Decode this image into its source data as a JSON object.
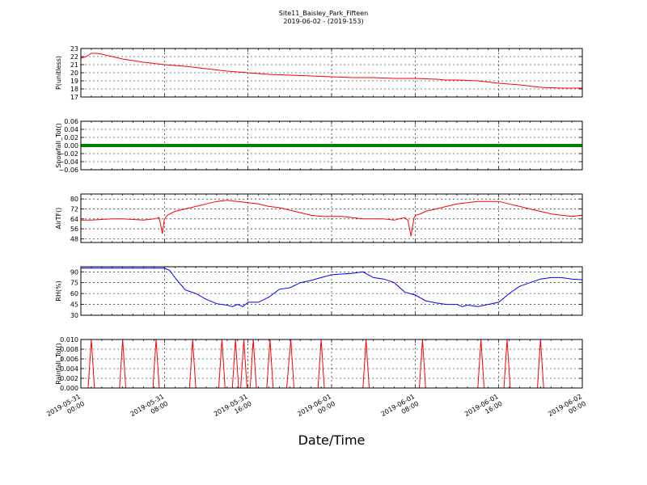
{
  "title": "Site11_Baisley_Park_Fifteen",
  "subtitle": "2019-06-02 - (2019-153)",
  "xlabel": "Date/Time",
  "x_ticks": [
    [
      "2019-05-31",
      "00:00"
    ],
    [
      "2019-05-31",
      "08:00"
    ],
    [
      "2019-05-31",
      "16:00"
    ],
    [
      "2019-06-01",
      "00:00"
    ],
    [
      "2019-06-01",
      "08:00"
    ],
    [
      "2019-06-01",
      "16:00"
    ],
    [
      "2019-06-02",
      "00:00"
    ]
  ],
  "chart_data": [
    {
      "type": "line",
      "ylabel": "P(unitless)",
      "color": "#ff0000",
      "ylim": [
        17,
        23
      ],
      "yticks": [
        "17",
        "18",
        "19",
        "20",
        "21",
        "22",
        "23"
      ],
      "x_hours": [
        0,
        0.5,
        1,
        1.5,
        2,
        3,
        4,
        6,
        8,
        10,
        12,
        14,
        16,
        18,
        20,
        22,
        24,
        26,
        28,
        30,
        32,
        34,
        35,
        36,
        38,
        40,
        42,
        44,
        46,
        48
      ],
      "values": [
        21.8,
        22.0,
        22.4,
        22.4,
        22.3,
        22.0,
        21.7,
        21.3,
        21.0,
        20.8,
        20.5,
        20.2,
        20.0,
        19.8,
        19.7,
        19.6,
        19.5,
        19.4,
        19.4,
        19.3,
        19.3,
        19.2,
        19.1,
        19.1,
        19.0,
        18.7,
        18.5,
        18.2,
        18.1,
        18.1
      ]
    },
    {
      "type": "line",
      "ylabel": "Snowfall_Tot()",
      "color": "#008000",
      "ylim": [
        -0.06,
        0.06
      ],
      "yticks": [
        "−0.06",
        "−0.04",
        "−0.02",
        "0.00",
        "0.02",
        "0.04",
        "0.06"
      ],
      "x_hours": [
        0,
        48
      ],
      "values": [
        0.0,
        0.0
      ]
    },
    {
      "type": "line",
      "ylabel": "AirTF()",
      "color": "#ff0000",
      "ylim": [
        45,
        84
      ],
      "yticks": [
        "48",
        "56",
        "64",
        "72",
        "80"
      ],
      "x_hours": [
        0,
        1,
        2,
        3,
        4,
        5,
        6,
        7,
        7.5,
        7.8,
        8.0,
        8.3,
        9,
        10,
        11,
        12,
        13,
        14,
        15,
        16,
        17,
        18,
        19,
        20,
        21,
        22,
        23,
        24,
        25,
        26,
        27,
        28,
        29,
        30,
        31,
        31.3,
        31.6,
        31.9,
        32.1,
        32.5,
        33,
        34,
        35,
        36,
        37,
        38,
        39,
        40,
        41,
        42,
        43,
        44,
        45,
        46,
        47,
        48
      ],
      "values": [
        63,
        63,
        63.5,
        64,
        64,
        63.5,
        63,
        64,
        65,
        52,
        64,
        67,
        70,
        72,
        74,
        76,
        78,
        79,
        78,
        77,
        76,
        74,
        73,
        71,
        69,
        67,
        66,
        66,
        66,
        65,
        64,
        64,
        64,
        63,
        65,
        63,
        50,
        65,
        67,
        68,
        70,
        72,
        74,
        76,
        77,
        78,
        78,
        78,
        76,
        74,
        72,
        70,
        68,
        67,
        66,
        67
      ]
    },
    {
      "type": "line",
      "ylabel": "RH(%)",
      "color": "#0000ff",
      "ylim": [
        30,
        97
      ],
      "yticks": [
        "30",
        "45",
        "60",
        "75",
        "90"
      ],
      "x_hours": [
        0,
        2,
        4,
        6,
        7,
        8,
        8.5,
        9,
        10,
        11,
        12,
        13,
        14,
        14.5,
        15,
        15.5,
        16,
        17,
        18,
        19,
        20,
        21,
        22,
        23,
        24,
        25,
        26,
        27,
        28,
        29,
        30,
        31,
        32,
        33,
        34,
        35,
        36,
        36.5,
        37,
        37.5,
        38,
        39,
        40,
        41,
        42,
        43,
        44,
        45,
        46,
        47,
        48
      ],
      "values": [
        95,
        95,
        95,
        95,
        95,
        95,
        92,
        82,
        65,
        60,
        52,
        46,
        44,
        42,
        45,
        42,
        48,
        48,
        55,
        66,
        68,
        75,
        78,
        82,
        86,
        87,
        88,
        90,
        82,
        80,
        75,
        62,
        58,
        50,
        47,
        45,
        45,
        42,
        44,
        43,
        42,
        45,
        48,
        60,
        70,
        75,
        80,
        82,
        82,
        80,
        79
      ]
    },
    {
      "type": "line",
      "ylabel": "Rainfall_Tot()",
      "color": "#ff0000",
      "ylim": [
        0,
        0.01
      ],
      "yticks": [
        "0.000",
        "0.002",
        "0.004",
        "0.006",
        "0.008",
        "0.010"
      ],
      "x_hours": [
        0,
        0.7,
        1,
        1.3,
        3.7,
        4,
        4.3,
        6.9,
        7.2,
        7.5,
        10.4,
        10.7,
        11,
        13.2,
        13.5,
        13.8,
        14.5,
        14.8,
        15.1,
        15.3,
        15.6,
        15.9,
        16.2,
        16.5,
        16.8,
        17.8,
        18.1,
        18.4,
        19.7,
        20.1,
        20.4,
        22.7,
        23,
        23.3,
        27,
        27.3,
        27.6,
        32.4,
        32.7,
        33,
        38,
        38.3,
        38.6,
        40.5,
        40.8,
        41.1,
        43.7,
        44,
        44.3,
        48
      ],
      "values": [
        0,
        0,
        0.01,
        0,
        0,
        0.01,
        0,
        0,
        0.01,
        0,
        0,
        0.01,
        0,
        0,
        0.01,
        0,
        0,
        0.01,
        0,
        0,
        0.01,
        0,
        0,
        0.01,
        0,
        0,
        0.01,
        0,
        0,
        0.01,
        0,
        0,
        0.01,
        0,
        0,
        0.01,
        0,
        0,
        0.01,
        0,
        0,
        0.01,
        0,
        0,
        0.01,
        0,
        0,
        0.01,
        0,
        0
      ]
    }
  ]
}
